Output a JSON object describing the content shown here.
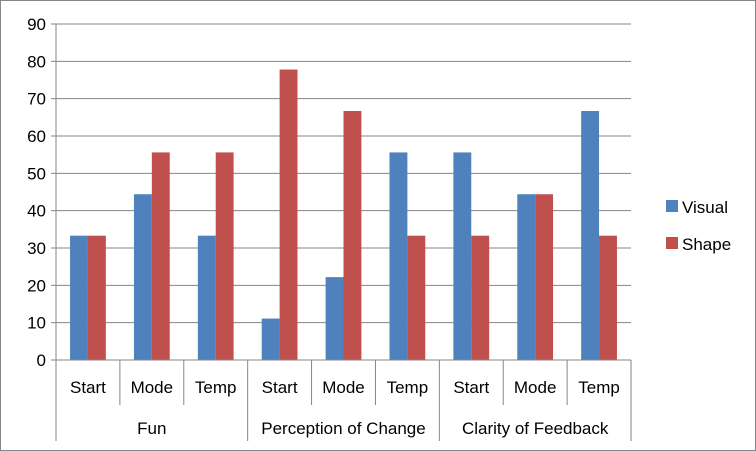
{
  "chart_data": {
    "type": "bar",
    "title": "",
    "xlabel": "",
    "ylabel": "",
    "ylim": [
      0,
      90
    ],
    "yticks": [
      0,
      10,
      20,
      30,
      40,
      50,
      60,
      70,
      80,
      90
    ],
    "grid": true,
    "legend_position": "right",
    "groups": [
      {
        "label": "Fun",
        "categories": [
          "Start",
          "Mode",
          "Temp"
        ]
      },
      {
        "label": "Perception of Change",
        "categories": [
          "Start",
          "Mode",
          "Temp"
        ]
      },
      {
        "label": "Clarity of Feedback",
        "categories": [
          "Start",
          "Mode",
          "Temp"
        ]
      }
    ],
    "categories": [
      "Start",
      "Mode",
      "Temp",
      "Start",
      "Mode",
      "Temp",
      "Start",
      "Mode",
      "Temp"
    ],
    "series": [
      {
        "name": "Visual",
        "color": "#4f81bd",
        "values": [
          33.3,
          44.4,
          33.3,
          11.1,
          22.2,
          55.6,
          55.6,
          44.4,
          66.7
        ]
      },
      {
        "name": "Shape",
        "color": "#c0504d",
        "values": [
          33.3,
          55.6,
          55.6,
          77.8,
          66.7,
          33.3,
          33.3,
          44.4,
          33.3
        ]
      }
    ]
  }
}
